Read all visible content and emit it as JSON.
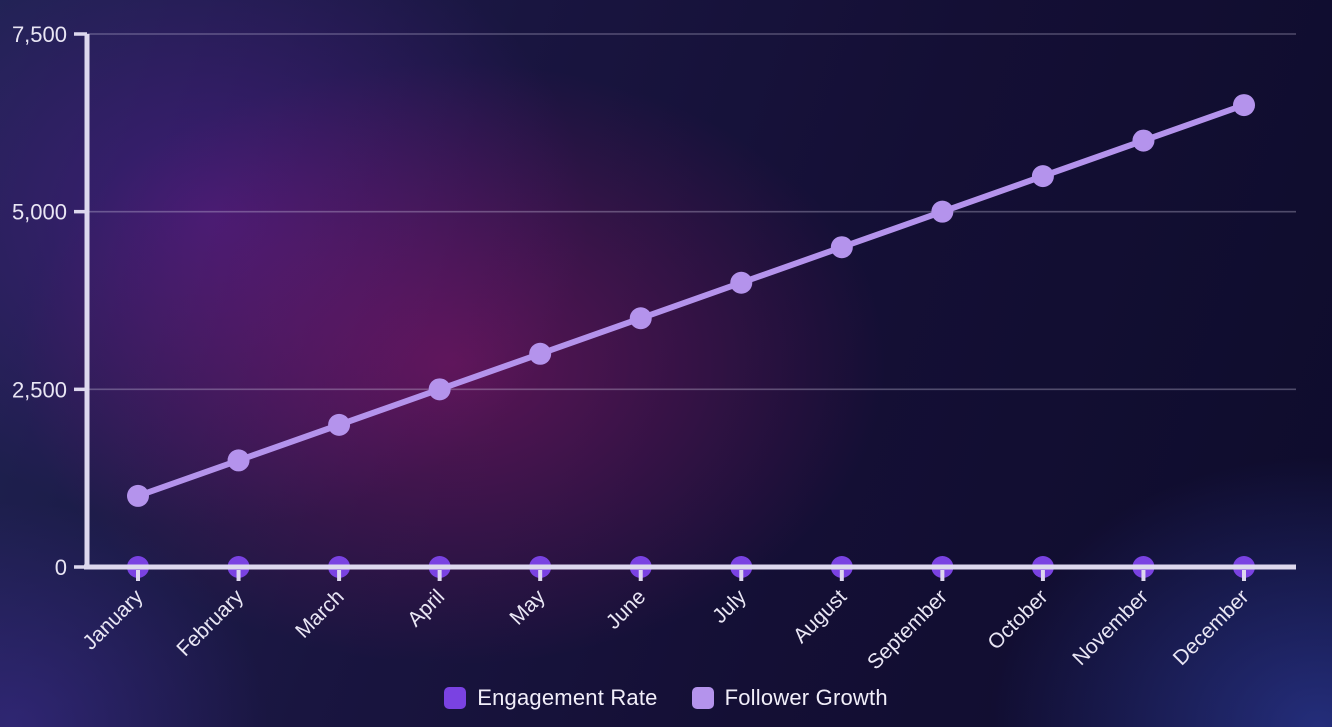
{
  "chart_data": {
    "type": "line",
    "title": "",
    "x_labels": [
      "January",
      "February",
      "March",
      "April",
      "May",
      "June",
      "July",
      "August",
      "September",
      "October",
      "November",
      "December"
    ],
    "series": [
      {
        "name": "Engagement Rate",
        "color": "#7a42e2",
        "values": [
          0,
          0,
          0,
          0,
          0,
          0,
          0,
          0,
          0,
          0,
          0,
          0
        ]
      },
      {
        "name": "Follower Growth",
        "color": "#b493ec",
        "values": [
          1000,
          1500,
          2000,
          2500,
          3000,
          3500,
          4000,
          4500,
          5000,
          5500,
          6000,
          6500
        ]
      }
    ],
    "ylim": [
      0,
      7500
    ],
    "yticks": [
      {
        "value": 0,
        "label": "0"
      },
      {
        "value": 2500,
        "label": "2,500"
      },
      {
        "value": 5000,
        "label": "5,000"
      },
      {
        "value": 7500,
        "label": "7,500"
      }
    ],
    "grid": true,
    "legend_position": "bottom"
  },
  "legend": {
    "items": [
      {
        "label": "Engagement Rate",
        "color": "#7a42e2"
      },
      {
        "label": "Follower Growth",
        "color": "#b493ec"
      }
    ]
  },
  "colors": {
    "axis": "#ddd8ee",
    "grid": "rgba(214,209,232,0.32)",
    "tick_label": "#e9e6f4",
    "engagement": "#7a42e2",
    "follower": "#b493ec"
  }
}
